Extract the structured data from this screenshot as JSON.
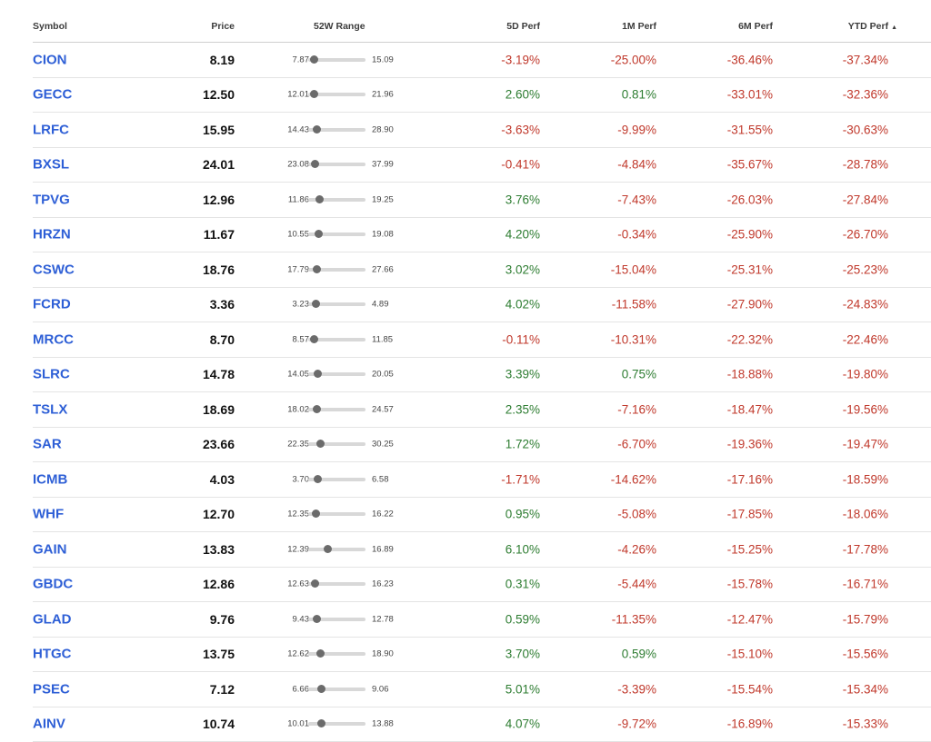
{
  "colors": {
    "negative": "#c0382b",
    "positive": "#2e7d32",
    "symbol_link": "#2e5fd6"
  },
  "headers": {
    "symbol": "Symbol",
    "price": "Price",
    "range": "52W Range",
    "perf_5d": "5D Perf",
    "perf_1m": "1M Perf",
    "perf_6m": "6M Perf",
    "perf_ytd": "YTD Perf",
    "sort_indicator": "▲"
  },
  "rows": [
    {
      "symbol": "CION",
      "price": "8.19",
      "low": "7.87",
      "high": "15.09",
      "perf_5d": "-3.19%",
      "perf_1m": "-25.00%",
      "perf_6m": "-36.46%",
      "perf_ytd": "-37.34%"
    },
    {
      "symbol": "GECC",
      "price": "12.50",
      "low": "12.01",
      "high": "21.96",
      "perf_5d": "2.60%",
      "perf_1m": "0.81%",
      "perf_6m": "-33.01%",
      "perf_ytd": "-32.36%"
    },
    {
      "symbol": "LRFC",
      "price": "15.95",
      "low": "14.43",
      "high": "28.90",
      "perf_5d": "-3.63%",
      "perf_1m": "-9.99%",
      "perf_6m": "-31.55%",
      "perf_ytd": "-30.63%"
    },
    {
      "symbol": "BXSL",
      "price": "24.01",
      "low": "23.08",
      "high": "37.99",
      "perf_5d": "-0.41%",
      "perf_1m": "-4.84%",
      "perf_6m": "-35.67%",
      "perf_ytd": "-28.78%"
    },
    {
      "symbol": "TPVG",
      "price": "12.96",
      "low": "11.86",
      "high": "19.25",
      "perf_5d": "3.76%",
      "perf_1m": "-7.43%",
      "perf_6m": "-26.03%",
      "perf_ytd": "-27.84%"
    },
    {
      "symbol": "HRZN",
      "price": "11.67",
      "low": "10.55",
      "high": "19.08",
      "perf_5d": "4.20%",
      "perf_1m": "-0.34%",
      "perf_6m": "-25.90%",
      "perf_ytd": "-26.70%"
    },
    {
      "symbol": "CSWC",
      "price": "18.76",
      "low": "17.79",
      "high": "27.66",
      "perf_5d": "3.02%",
      "perf_1m": "-15.04%",
      "perf_6m": "-25.31%",
      "perf_ytd": "-25.23%"
    },
    {
      "symbol": "FCRD",
      "price": "3.36",
      "low": "3.23",
      "high": "4.89",
      "perf_5d": "4.02%",
      "perf_1m": "-11.58%",
      "perf_6m": "-27.90%",
      "perf_ytd": "-24.83%"
    },
    {
      "symbol": "MRCC",
      "price": "8.70",
      "low": "8.57",
      "high": "11.85",
      "perf_5d": "-0.11%",
      "perf_1m": "-10.31%",
      "perf_6m": "-22.32%",
      "perf_ytd": "-22.46%"
    },
    {
      "symbol": "SLRC",
      "price": "14.78",
      "low": "14.05",
      "high": "20.05",
      "perf_5d": "3.39%",
      "perf_1m": "0.75%",
      "perf_6m": "-18.88%",
      "perf_ytd": "-19.80%"
    },
    {
      "symbol": "TSLX",
      "price": "18.69",
      "low": "18.02",
      "high": "24.57",
      "perf_5d": "2.35%",
      "perf_1m": "-7.16%",
      "perf_6m": "-18.47%",
      "perf_ytd": "-19.56%"
    },
    {
      "symbol": "SAR",
      "price": "23.66",
      "low": "22.35",
      "high": "30.25",
      "perf_5d": "1.72%",
      "perf_1m": "-6.70%",
      "perf_6m": "-19.36%",
      "perf_ytd": "-19.47%"
    },
    {
      "symbol": "ICMB",
      "price": "4.03",
      "low": "3.70",
      "high": "6.58",
      "perf_5d": "-1.71%",
      "perf_1m": "-14.62%",
      "perf_6m": "-17.16%",
      "perf_ytd": "-18.59%"
    },
    {
      "symbol": "WHF",
      "price": "12.70",
      "low": "12.35",
      "high": "16.22",
      "perf_5d": "0.95%",
      "perf_1m": "-5.08%",
      "perf_6m": "-17.85%",
      "perf_ytd": "-18.06%"
    },
    {
      "symbol": "GAIN",
      "price": "13.83",
      "low": "12.39",
      "high": "16.89",
      "perf_5d": "6.10%",
      "perf_1m": "-4.26%",
      "perf_6m": "-15.25%",
      "perf_ytd": "-17.78%"
    },
    {
      "symbol": "GBDC",
      "price": "12.86",
      "low": "12.63",
      "high": "16.23",
      "perf_5d": "0.31%",
      "perf_1m": "-5.44%",
      "perf_6m": "-15.78%",
      "perf_ytd": "-16.71%"
    },
    {
      "symbol": "GLAD",
      "price": "9.76",
      "low": "9.43",
      "high": "12.78",
      "perf_5d": "0.59%",
      "perf_1m": "-11.35%",
      "perf_6m": "-12.47%",
      "perf_ytd": "-15.79%"
    },
    {
      "symbol": "HTGC",
      "price": "13.75",
      "low": "12.62",
      "high": "18.90",
      "perf_5d": "3.70%",
      "perf_1m": "0.59%",
      "perf_6m": "-15.10%",
      "perf_ytd": "-15.56%"
    },
    {
      "symbol": "PSEC",
      "price": "7.12",
      "low": "6.66",
      "high": "9.06",
      "perf_5d": "5.01%",
      "perf_1m": "-3.39%",
      "perf_6m": "-15.54%",
      "perf_ytd": "-15.34%"
    },
    {
      "symbol": "AINV",
      "price": "10.74",
      "low": "10.01",
      "high": "13.88",
      "perf_5d": "4.07%",
      "perf_1m": "-9.72%",
      "perf_6m": "-16.89%",
      "perf_ytd": "-15.33%"
    }
  ]
}
